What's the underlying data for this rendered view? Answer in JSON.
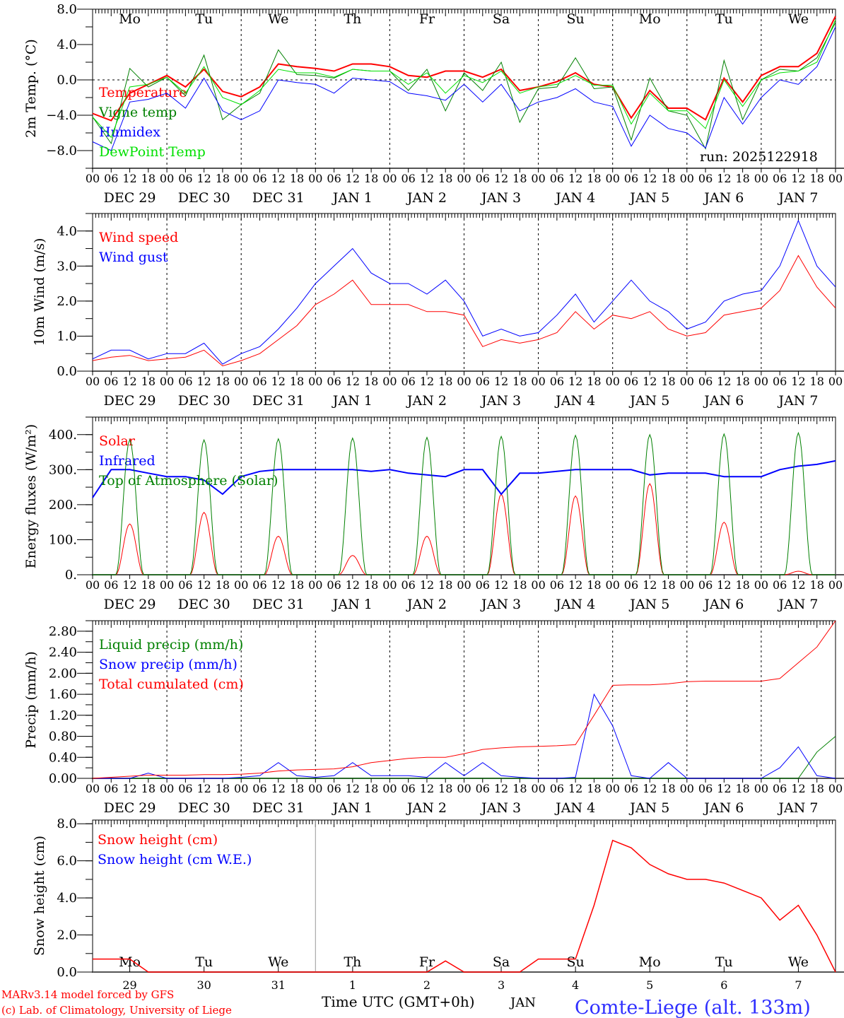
{
  "chart_data": [
    {
      "type": "line",
      "id": "temp",
      "ylabel": "2m Temp. (°C)",
      "ylim": [
        -10,
        8
      ],
      "yticks": [
        -8,
        -4,
        0,
        4,
        8
      ],
      "ytick_labels": [
        "−8.0",
        "−4.0",
        "0.0",
        "4.0",
        "8.0"
      ],
      "yminor": 2,
      "zero_line": true,
      "day_labels": [
        "Mo",
        "Tu",
        "We",
        "Th",
        "Fr",
        "Sa",
        "Su",
        "Mo",
        "Tu",
        "We"
      ],
      "x_step_hours": 6,
      "series": [
        {
          "name": "Temperature",
          "color": "#ff0000",
          "width": 2,
          "values": [
            -3.8,
            -4.6,
            -1.5,
            -0.5,
            0.5,
            -0.8,
            1.2,
            -1.3,
            -1.9,
            -0.8,
            1.8,
            1.5,
            1.3,
            1.0,
            1.8,
            1.8,
            1.5,
            0.5,
            0.3,
            1.0,
            1.0,
            0.3,
            1.2,
            -1.2,
            -0.8,
            -0.2,
            0.8,
            -0.5,
            -0.8,
            -4.3,
            -1.2,
            -3.2,
            -3.2,
            -4.5,
            0.2,
            -2.5,
            0.5,
            1.5,
            1.5,
            3.0,
            7.2
          ]
        },
        {
          "name": "Vigne temp",
          "color": "#008000",
          "width": 1,
          "values": [
            -4.2,
            -7.2,
            1.3,
            -0.8,
            0.3,
            -1.8,
            2.8,
            -4.5,
            -2.8,
            -1.5,
            3.4,
            0.6,
            0.5,
            0.2,
            1.2,
            1.0,
            1.0,
            -1.2,
            1.2,
            -3.5,
            0.8,
            -1.2,
            2.0,
            -4.8,
            -1.0,
            -0.8,
            2.5,
            -1.0,
            -0.8,
            -6.8,
            0.2,
            -3.5,
            -4.0,
            -7.8,
            2.2,
            -4.5,
            0.0,
            1.2,
            1.0,
            2.5,
            6.5
          ]
        },
        {
          "name": "Humidex",
          "color": "#0000ff",
          "width": 1,
          "values": [
            -7.0,
            -8.0,
            -2.5,
            -2.2,
            -1.5,
            -3.2,
            0.2,
            -3.5,
            -4.5,
            -3.5,
            0.0,
            -0.3,
            -0.5,
            -1.5,
            0.2,
            0.0,
            -0.2,
            -1.5,
            -1.8,
            -2.3,
            -0.5,
            -2.5,
            -0.5,
            -3.5,
            -2.5,
            -2.0,
            -1.0,
            -2.5,
            -3.0,
            -7.5,
            -4.0,
            -5.5,
            -6.0,
            -7.7,
            -2.0,
            -5.0,
            -2.0,
            0.0,
            -0.5,
            1.5,
            6.0
          ]
        },
        {
          "name": "DewPoint Temp",
          "color": "#00e000",
          "width": 1,
          "values": [
            -4.2,
            -6.5,
            -0.8,
            -0.5,
            0.3,
            -1.5,
            1.5,
            -2.0,
            -2.8,
            -1.2,
            1.2,
            0.8,
            0.8,
            0.3,
            1.2,
            1.0,
            1.0,
            -0.5,
            0.8,
            -1.5,
            0.5,
            -0.3,
            1.0,
            -1.5,
            -0.8,
            -0.5,
            0.5,
            -0.6,
            -0.6,
            -5.0,
            -1.5,
            -3.5,
            -3.5,
            -5.5,
            0.0,
            -3.0,
            0.0,
            0.8,
            1.0,
            2.0,
            6.8
          ]
        }
      ],
      "annotation": "run: 2025122918"
    },
    {
      "type": "line",
      "id": "wind",
      "ylabel": "10m Wind (m/s)",
      "ylim": [
        0,
        4.5
      ],
      "yticks": [
        0,
        1,
        2,
        3,
        4
      ],
      "ytick_labels": [
        "0.0",
        "1.0",
        "2.0",
        "3.0",
        "4.0"
      ],
      "yminor": 0.5,
      "x_step_hours": 6,
      "series": [
        {
          "name": "Wind speed",
          "color": "#ff0000",
          "width": 1,
          "values": [
            0.3,
            0.4,
            0.45,
            0.3,
            0.35,
            0.4,
            0.6,
            0.15,
            0.3,
            0.5,
            0.9,
            1.3,
            1.9,
            2.2,
            2.6,
            1.9,
            1.9,
            1.9,
            1.7,
            1.7,
            1.6,
            0.7,
            0.9,
            0.8,
            0.9,
            1.1,
            1.7,
            1.2,
            1.6,
            1.5,
            1.7,
            1.2,
            1.0,
            1.1,
            1.6,
            1.7,
            1.8,
            2.3,
            3.3,
            2.4,
            1.8
          ]
        },
        {
          "name": "Wind gust",
          "color": "#0000ff",
          "width": 1,
          "values": [
            0.35,
            0.6,
            0.6,
            0.35,
            0.5,
            0.5,
            0.8,
            0.2,
            0.5,
            0.7,
            1.2,
            1.8,
            2.5,
            3.0,
            3.5,
            2.8,
            2.5,
            2.5,
            2.2,
            2.6,
            2.0,
            1.0,
            1.2,
            1.0,
            1.1,
            1.6,
            2.2,
            1.4,
            2.0,
            2.6,
            2.0,
            1.7,
            1.2,
            1.4,
            2.0,
            2.2,
            2.3,
            3.0,
            4.3,
            3.0,
            2.4
          ]
        }
      ]
    },
    {
      "type": "line",
      "id": "energy",
      "ylabel": "Energy fluxes (W/m²)",
      "ylim": [
        0,
        450
      ],
      "yticks": [
        0,
        100,
        200,
        300,
        400
      ],
      "ytick_labels": [
        "0.",
        "100.",
        "200.",
        "300.",
        "400."
      ],
      "yminor": 50,
      "x_step_hours": 6,
      "series": [
        {
          "name": "Solar",
          "color": "#ff0000",
          "width": 1,
          "daily_peaks": [
            145,
            178,
            110,
            55,
            110,
            230,
            225,
            260,
            150,
            10
          ]
        },
        {
          "name": "Infrared",
          "color": "#0000ff",
          "width": 2,
          "values": [
            220,
            300,
            300,
            290,
            280,
            280,
            270,
            230,
            280,
            295,
            300,
            300,
            300,
            300,
            300,
            295,
            300,
            290,
            285,
            280,
            300,
            300,
            230,
            290,
            290,
            295,
            300,
            300,
            300,
            300,
            285,
            290,
            290,
            290,
            280,
            280,
            280,
            300,
            310,
            315,
            325
          ]
        },
        {
          "name": "Top of Atmosphere (Solar)",
          "color": "#008000",
          "width": 1,
          "daily_peaks": [
            385,
            385,
            388,
            390,
            392,
            395,
            398,
            400,
            402,
            405
          ]
        }
      ]
    },
    {
      "type": "line",
      "id": "precip",
      "ylabel": "Precip (mm/h)",
      "ylim": [
        0,
        3.0
      ],
      "yticks": [
        0,
        0.4,
        0.8,
        1.2,
        1.6,
        2.0,
        2.4,
        2.8
      ],
      "ytick_labels": [
        "0.00",
        "0.40",
        "0.80",
        "1.20",
        "1.60",
        "2.00",
        "2.40",
        "2.80"
      ],
      "yminor": 0.2,
      "x_step_hours": 6,
      "series": [
        {
          "name": "Liquid precip (mm/h)",
          "color": "#008000",
          "width": 1,
          "values": [
            0,
            0,
            0,
            0,
            0,
            0,
            0,
            0,
            0,
            0,
            0,
            0,
            0,
            0,
            0,
            0,
            0,
            0,
            0,
            0,
            0,
            0,
            0,
            0,
            0,
            0,
            0,
            0,
            0,
            0,
            0,
            0,
            0,
            0,
            0,
            0,
            0,
            0,
            0,
            0.5,
            0.8
          ]
        },
        {
          "name": "Snow precip (mm/h)",
          "color": "#0000ff",
          "width": 1,
          "values": [
            0,
            0,
            0,
            0.1,
            0,
            0,
            0,
            0,
            0.02,
            0.05,
            0.3,
            0.05,
            0.02,
            0.05,
            0.3,
            0.05,
            0.05,
            0.05,
            0.02,
            0.3,
            0.05,
            0.3,
            0.05,
            0.02,
            0,
            0,
            0.02,
            1.6,
            1.0,
            0.05,
            0,
            0.3,
            0,
            0,
            0,
            0,
            0,
            0.2,
            0.6,
            0.05,
            0
          ]
        },
        {
          "name": "Total cumulated (cm)",
          "color": "#ff0000",
          "width": 1,
          "values": [
            0,
            0.02,
            0.04,
            0.06,
            0.06,
            0.06,
            0.07,
            0.07,
            0.08,
            0.1,
            0.14,
            0.16,
            0.17,
            0.18,
            0.22,
            0.3,
            0.34,
            0.38,
            0.4,
            0.4,
            0.47,
            0.55,
            0.58,
            0.6,
            0.61,
            0.62,
            0.64,
            1.2,
            1.77,
            1.78,
            1.78,
            1.8,
            1.84,
            1.85,
            1.85,
            1.85,
            1.85,
            1.9,
            2.2,
            2.5,
            3.0
          ]
        }
      ]
    },
    {
      "type": "line",
      "id": "snow",
      "ylabel": "Snow height (cm)",
      "ylim": [
        0,
        8.2
      ],
      "yticks": [
        0,
        2,
        4,
        6,
        8
      ],
      "ytick_labels": [
        "0.0",
        "2.0",
        "4.0",
        "6.0",
        "8.0"
      ],
      "yminor": 1,
      "day_labels": [
        "Mo",
        "Tu",
        "We",
        "Th",
        "Fr",
        "Sa",
        "Su",
        "Mo",
        "Tu",
        "We"
      ],
      "day_numbers": [
        "29",
        "30",
        "31",
        "1",
        "2",
        "3",
        "4",
        "5",
        "6",
        "7"
      ],
      "month_label": "JAN",
      "x_step_hours": 6,
      "series": [
        {
          "name": "Snow height (cm)",
          "color": "#ff0000",
          "width": 1.5,
          "values": [
            0.7,
            0.7,
            0.7,
            0,
            0,
            0,
            0,
            0,
            0,
            0,
            0,
            0,
            0,
            0,
            0,
            0,
            0,
            0,
            0,
            0.6,
            0,
            0,
            0,
            0,
            0.7,
            0.7,
            0.7,
            3.6,
            7.1,
            6.7,
            5.8,
            5.3,
            5.0,
            5.0,
            4.8,
            4.4,
            4.0,
            2.8,
            3.6,
            2.0,
            0
          ]
        },
        {
          "name": "Snow height (cm W.E.)",
          "color": "#0000ff",
          "width": 1,
          "values": []
        }
      ]
    }
  ],
  "x_axis": {
    "hour_labels": [
      "00",
      "06",
      "12",
      "18"
    ],
    "date_labels": [
      "DEC  29",
      "DEC  30",
      "DEC  31",
      "JAN   1",
      "JAN   2",
      "JAN   3",
      "JAN   4",
      "JAN   5",
      "JAN   6",
      "JAN   7"
    ],
    "weekend_color": "#ff0000",
    "xlabel": "Time UTC (GMT+0h)"
  },
  "footer": {
    "credit1": "MARv3.14 model forced by GFS",
    "credit2": "(c) Lab. of Climatology, University of Liege",
    "station": "Comte-Liege (alt. 133m)"
  }
}
